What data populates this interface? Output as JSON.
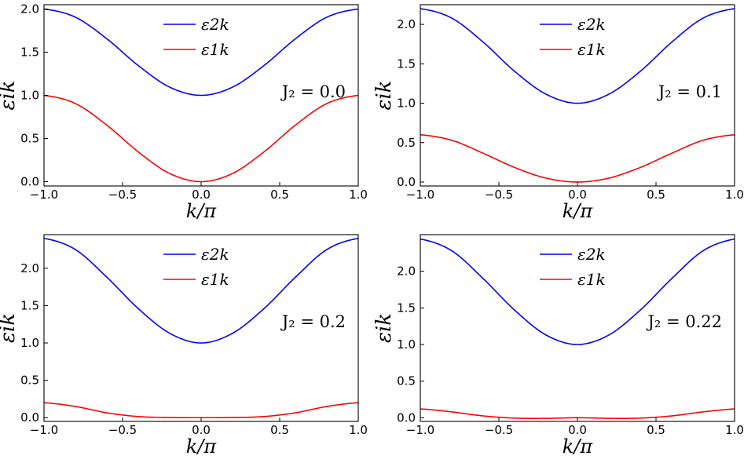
{
  "chart_data": [
    {
      "type": "line",
      "annotation": "J₂ = 0.0",
      "xlabel": "k/π",
      "ylabel": "εik",
      "xlim": [
        -1.0,
        1.0
      ],
      "ylim": [
        -0.05,
        2.05
      ],
      "xticks": [
        "−1.0",
        "−0.5",
        "0.0",
        "0.5",
        "1.0"
      ],
      "yticks": [
        "0.0",
        "0.5",
        "1.0",
        "1.5",
        "2.0"
      ],
      "ytick_values": [
        0.0,
        0.5,
        1.0,
        1.5,
        2.0
      ],
      "legend_position": "top-center",
      "series": [
        {
          "name": "ε2k",
          "color": "#0000ff",
          "x": [
            -1.0,
            -0.8,
            -0.6,
            -0.4,
            -0.2,
            0.0,
            0.2,
            0.4,
            0.6,
            0.8,
            1.0
          ],
          "y": [
            2.0,
            1.905,
            1.655,
            1.345,
            1.095,
            1.0,
            1.095,
            1.345,
            1.655,
            1.905,
            2.0
          ]
        },
        {
          "name": "ε1k",
          "color": "#ff0000",
          "x": [
            -1.0,
            -0.8,
            -0.6,
            -0.4,
            -0.2,
            0.0,
            0.2,
            0.4,
            0.6,
            0.8,
            1.0
          ],
          "y": [
            1.0,
            0.905,
            0.655,
            0.345,
            0.095,
            0.0,
            0.095,
            0.345,
            0.655,
            0.905,
            1.0
          ]
        }
      ]
    },
    {
      "type": "line",
      "annotation": "J₂ = 0.1",
      "xlabel": "k/π",
      "ylabel": "εik",
      "xlim": [
        -1.0,
        1.0
      ],
      "ylim": [
        -0.05,
        2.25
      ],
      "xticks": [
        "−1.0",
        "−0.5",
        "0.0",
        "0.5",
        "1.0"
      ],
      "yticks": [
        "0.0",
        "0.5",
        "1.0",
        "1.5",
        "2.0"
      ],
      "ytick_values": [
        0.0,
        0.5,
        1.0,
        1.5,
        2.0
      ],
      "legend_position": "top-center",
      "series": [
        {
          "name": "ε2k",
          "color": "#0000ff",
          "x": [
            -1.0,
            -0.8,
            -0.6,
            -0.4,
            -0.2,
            0.0,
            0.2,
            0.4,
            0.6,
            0.8,
            1.0
          ],
          "y": [
            2.2,
            2.08,
            1.775,
            1.405,
            1.115,
            1.0,
            1.115,
            1.405,
            1.775,
            2.08,
            2.2
          ]
        },
        {
          "name": "ε1k",
          "color": "#ff0000",
          "x": [
            -1.0,
            -0.8,
            -0.6,
            -0.4,
            -0.2,
            0.0,
            0.2,
            0.4,
            0.6,
            0.8,
            1.0
          ],
          "y": [
            0.6,
            0.53,
            0.365,
            0.185,
            0.05,
            0.0,
            0.05,
            0.185,
            0.365,
            0.53,
            0.6
          ]
        }
      ]
    },
    {
      "type": "line",
      "annotation": "J₂ = 0.2",
      "xlabel": "k/π",
      "ylabel": "εik",
      "xlim": [
        -1.0,
        1.0
      ],
      "ylim": [
        -0.05,
        2.45
      ],
      "xticks": [
        "−1.0",
        "−0.5",
        "0.0",
        "0.5",
        "1.0"
      ],
      "yticks": [
        "0.0",
        "0.5",
        "1.0",
        "1.5",
        "2.0"
      ],
      "ytick_values": [
        0.0,
        0.5,
        1.0,
        1.5,
        2.0
      ],
      "legend_position": "top-center",
      "series": [
        {
          "name": "ε2k",
          "color": "#0000ff",
          "x": [
            -1.0,
            -0.8,
            -0.6,
            -0.4,
            -0.2,
            0.0,
            0.2,
            0.4,
            0.6,
            0.8,
            1.0
          ],
          "y": [
            2.4,
            2.25,
            1.88,
            1.46,
            1.13,
            1.0,
            1.13,
            1.46,
            1.88,
            2.25,
            2.4
          ]
        },
        {
          "name": "ε1k",
          "color": "#ff0000",
          "x": [
            -1.0,
            -0.8,
            -0.6,
            -0.4,
            -0.2,
            0.0,
            0.2,
            0.4,
            0.6,
            0.8,
            1.0
          ],
          "y": [
            0.2,
            0.15,
            0.065,
            0.015,
            0.002,
            0.0,
            0.002,
            0.015,
            0.065,
            0.15,
            0.2
          ]
        }
      ]
    },
    {
      "type": "line",
      "annotation": "J₂ = 0.22",
      "xlabel": "k/π",
      "ylabel": "εik",
      "xlim": [
        -1.0,
        1.0
      ],
      "ylim": [
        -0.05,
        2.5
      ],
      "xticks": [
        "−1.0",
        "−0.5",
        "0.0",
        "0.5",
        "1.0"
      ],
      "yticks": [
        "0.0",
        "0.5",
        "1.0",
        "1.5",
        "2.0"
      ],
      "ytick_values": [
        0.0,
        0.5,
        1.0,
        1.5,
        2.0
      ],
      "legend_position": "top-center",
      "series": [
        {
          "name": "ε2k",
          "color": "#0000ff",
          "x": [
            -1.0,
            -0.8,
            -0.6,
            -0.4,
            -0.2,
            0.0,
            0.2,
            0.4,
            0.6,
            0.8,
            1.0
          ],
          "y": [
            2.44,
            2.28,
            1.9,
            1.47,
            1.13,
            1.0,
            1.13,
            1.47,
            1.9,
            2.28,
            2.44
          ]
        },
        {
          "name": "ε1k",
          "color": "#ff0000",
          "x": [
            -1.0,
            -0.8,
            -0.6,
            -0.4,
            -0.2,
            0.0,
            0.2,
            0.4,
            0.6,
            0.8,
            1.0
          ],
          "y": [
            0.12,
            0.08,
            0.025,
            -0.005,
            -0.008,
            0.0,
            -0.008,
            -0.005,
            0.025,
            0.08,
            0.12
          ]
        }
      ]
    }
  ]
}
